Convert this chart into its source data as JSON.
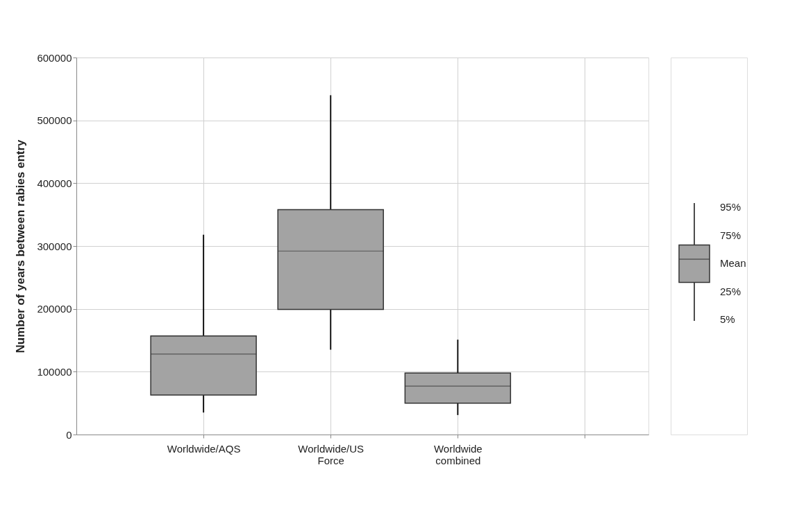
{
  "chart_data": {
    "type": "box",
    "ylabel": "Number of years between rabies entry",
    "categories": [
      "Worldwide/AQS",
      "Worldwide/US Force",
      "Worldwide combined",
      null
    ],
    "boxes": [
      {
        "low": 35000,
        "q1": 63000,
        "mean": 128000,
        "q3": 157000,
        "high": 318000
      },
      {
        "low": 135000,
        "q1": 199000,
        "mean": 292000,
        "q3": 358000,
        "high": 540000
      },
      {
        "low": 31000,
        "q1": 50000,
        "mean": 77000,
        "q3": 98000,
        "high": 151000
      },
      null
    ],
    "color": "#a3a3a3",
    "ylim": [
      0,
      600000
    ],
    "yticks": [
      0,
      100000,
      200000,
      300000,
      400000,
      500000,
      600000
    ],
    "grid": true,
    "annotations": [
      "95%",
      "75%",
      "Mean",
      "25%",
      "5%"
    ]
  }
}
